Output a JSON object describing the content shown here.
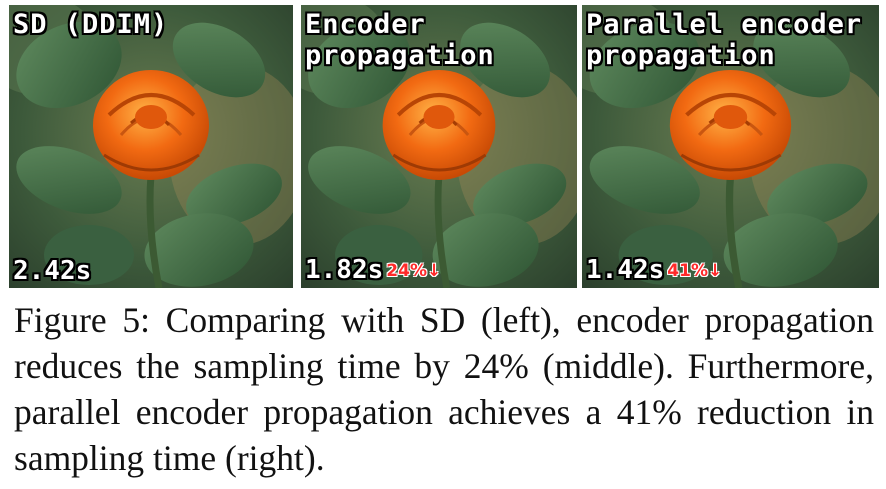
{
  "panels": [
    {
      "label": "SD (DDIM)",
      "time": "2.42s",
      "reduction": ""
    },
    {
      "label": "Encoder\npropagation",
      "time": "1.82s",
      "reduction": "24%↓"
    },
    {
      "label": "Parallel encoder\npropagation",
      "time": "1.42s",
      "reduction": "41%↓"
    }
  ],
  "caption": {
    "figure_label": "Figure 5:",
    "text": "Comparing with SD (left), encoder propagation reduces the sampling time by 24% (middle). Furthermore, parallel encoder propagation achieves a 41% reduction in sampling time (right)."
  },
  "colors": {
    "reduction": "#ff2a2a",
    "rose": "#f26a12",
    "leaf": "#3f6b44"
  }
}
